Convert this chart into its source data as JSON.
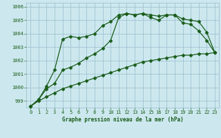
{
  "title": "Graphe pression niveau de la mer (hPa)",
  "bg_color": "#cce8ee",
  "grid_color": "#99bbcc",
  "line_color": "#1a5c1a",
  "xlim": [
    -0.5,
    23.5
  ],
  "ylim": [
    998.5,
    1006.3
  ],
  "yticks": [
    999,
    1000,
    1001,
    1002,
    1003,
    1004,
    1005,
    1006
  ],
  "xticks": [
    0,
    1,
    2,
    3,
    4,
    5,
    6,
    7,
    8,
    9,
    10,
    11,
    12,
    13,
    14,
    15,
    16,
    17,
    18,
    19,
    20,
    21,
    22,
    23
  ],
  "line1_x": [
    0,
    1,
    2,
    3,
    4,
    5,
    6,
    7,
    8,
    9,
    10,
    11,
    12,
    13,
    14,
    15,
    16,
    17,
    18,
    19,
    20,
    21,
    22,
    23
  ],
  "line1_y": [
    998.6,
    999.1,
    999.9,
    1000.3,
    1001.3,
    1001.5,
    1001.8,
    1002.2,
    1002.5,
    1002.9,
    1003.5,
    1005.2,
    1005.5,
    1005.4,
    1005.5,
    1005.4,
    1005.3,
    1005.4,
    1005.4,
    1005.1,
    1005.0,
    1004.9,
    1004.1,
    1002.6
  ],
  "line2_x": [
    0,
    1,
    2,
    3,
    4,
    5,
    6,
    7,
    8,
    9,
    10,
    11,
    12,
    13,
    14,
    15,
    16,
    17,
    18,
    19,
    20,
    21,
    22,
    23
  ],
  "line2_y": [
    998.6,
    999.1,
    1000.1,
    1001.3,
    1003.6,
    1003.8,
    1003.7,
    1003.8,
    1004.0,
    1004.6,
    1004.9,
    1005.4,
    1005.5,
    1005.4,
    1005.5,
    1005.2,
    1005.0,
    1005.4,
    1005.4,
    1004.8,
    1004.7,
    1004.2,
    1003.5,
    1002.6
  ],
  "line3_x": [
    0,
    1,
    2,
    3,
    4,
    5,
    6,
    7,
    8,
    9,
    10,
    11,
    12,
    13,
    14,
    15,
    16,
    17,
    18,
    19,
    20,
    21,
    22,
    23
  ],
  "line3_y": [
    998.6,
    999.0,
    999.3,
    999.6,
    999.9,
    1000.1,
    1000.3,
    1000.5,
    1000.7,
    1000.9,
    1001.1,
    1001.3,
    1001.5,
    1001.7,
    1001.9,
    1002.0,
    1002.1,
    1002.2,
    1002.3,
    1002.4,
    1002.4,
    1002.5,
    1002.5,
    1002.6
  ]
}
